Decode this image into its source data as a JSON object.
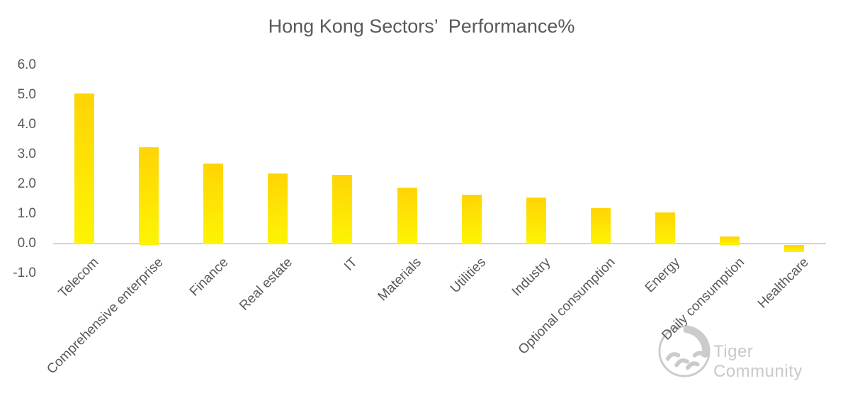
{
  "page": {
    "background": "#ffffff"
  },
  "chart_data": {
    "type": "bar",
    "title": "Hong Kong Sectors’  Performance%",
    "categories": [
      "Telecom",
      "Comprehensive enterprise",
      "Finance",
      "Real estate",
      "IT",
      "Materials",
      "Utilities",
      "Industry",
      "Optional consumption",
      "Energy",
      "Daily consumption",
      "Healthcare"
    ],
    "values": [
      5.05,
      3.25,
      2.7,
      2.35,
      2.3,
      1.87,
      1.65,
      1.55,
      1.2,
      1.05,
      0.25,
      -0.25
    ],
    "xlabel": "",
    "ylabel": "",
    "ylim": [
      -1.0,
      6.0
    ],
    "ytick_step": 1.0,
    "ytick_decimals": 1,
    "grid": false,
    "legend": "none",
    "colors": {
      "bar_gradient_top": "#ffd405",
      "bar_gradient_bottom": "#fdf403",
      "axis_line": "#d2d2d2",
      "text": "#595959",
      "title": "#595959"
    }
  },
  "watermark": {
    "text": "Tiger Community",
    "logo_icon": "tiger-circle-logo",
    "color": "#c9c9c9"
  }
}
